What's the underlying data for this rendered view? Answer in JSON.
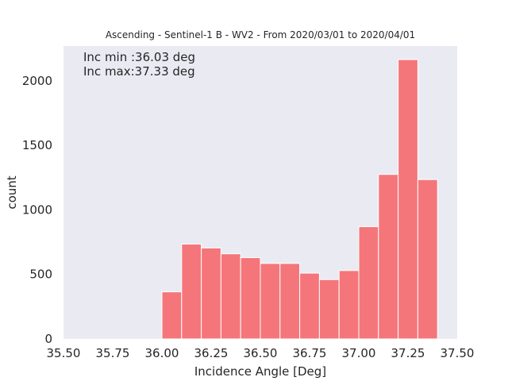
{
  "chart_data": {
    "type": "bar",
    "title": "Ascending - Sentinel-1 B - WV2 - From 2020/03/01 to 2020/04/01",
    "xlabel": "Incidence Angle [Deg]",
    "ylabel": "count",
    "xlim": [
      35.5,
      37.5
    ],
    "ylim": [
      0,
      2270
    ],
    "xticks": [
      "35.50",
      "35.75",
      "36.00",
      "36.25",
      "36.50",
      "36.75",
      "37.00",
      "37.25",
      "37.50"
    ],
    "yticks": [
      "0",
      "500",
      "1000",
      "1500",
      "2000"
    ],
    "grid": false,
    "bin_edges": [
      36.0,
      36.1,
      36.2,
      36.3,
      36.4,
      36.5,
      36.6,
      36.7,
      36.8,
      36.9,
      37.0,
      37.1,
      37.2,
      37.3,
      37.4
    ],
    "values": [
      365,
      735,
      705,
      660,
      630,
      585,
      585,
      510,
      460,
      530,
      870,
      1275,
      2165,
      1235
    ],
    "bar_color": "#f4767a",
    "background_color": "#eaeaf2",
    "annotations": [
      "Inc min :36.03 deg",
      "Inc max:37.33 deg"
    ]
  }
}
